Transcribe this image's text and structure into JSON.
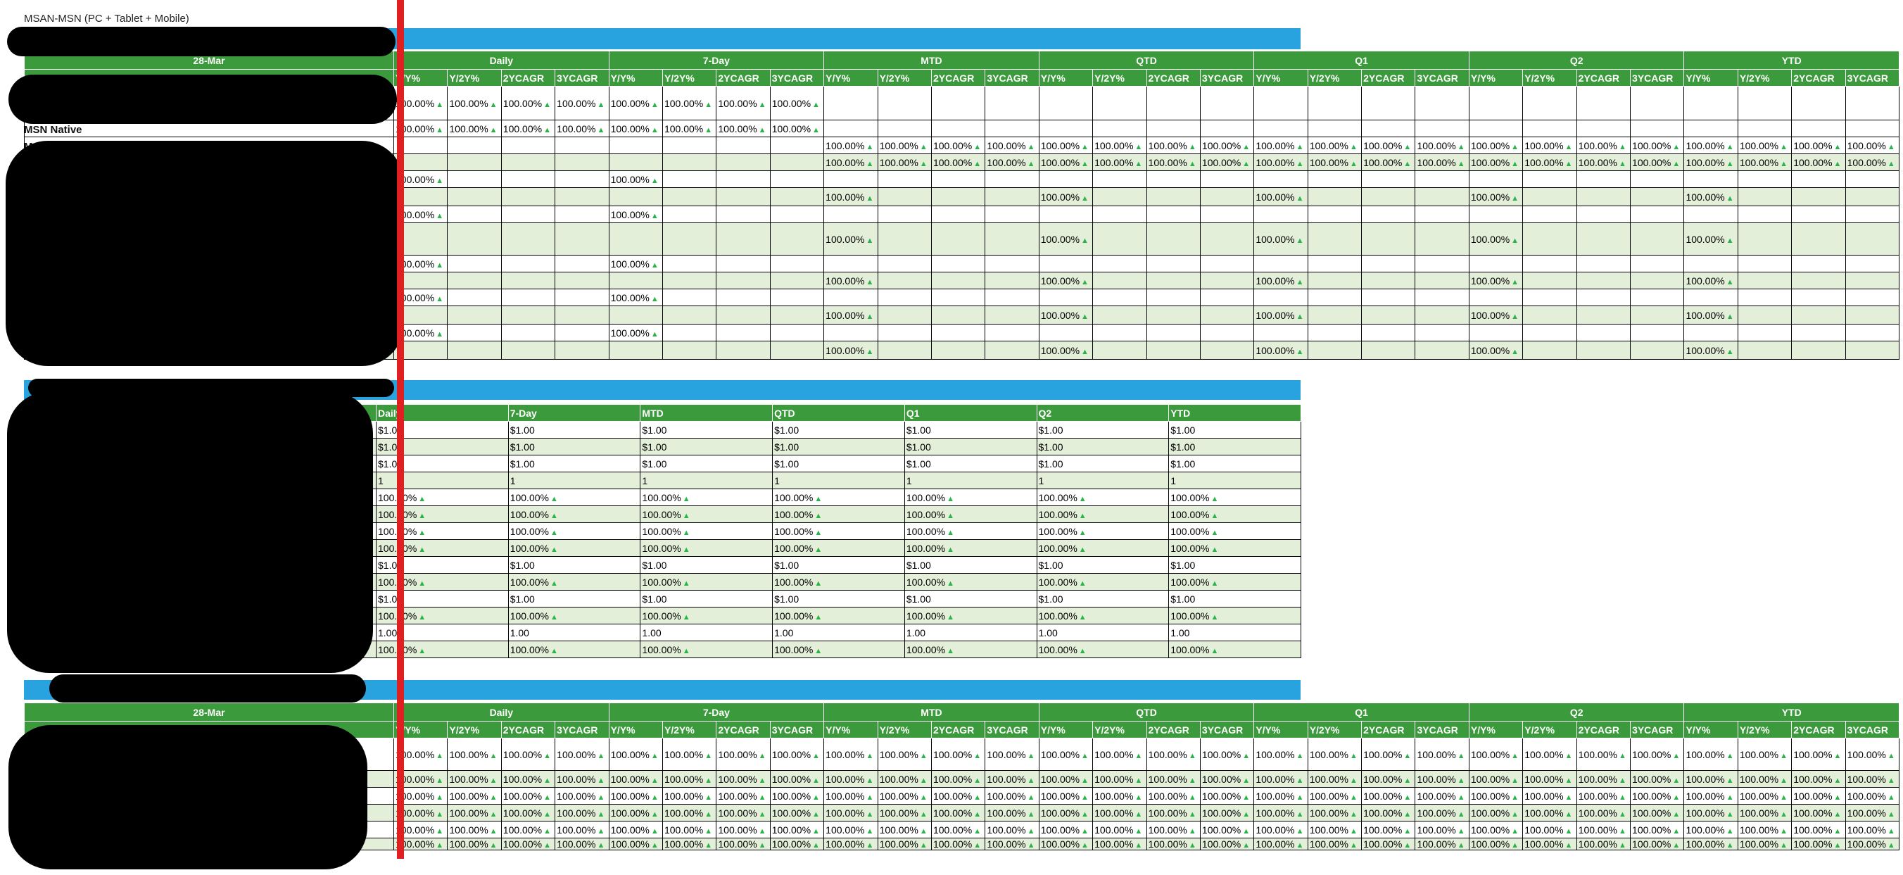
{
  "caption": "MSAN-MSN (PC + Tablet + Mobile)",
  "date_label": "28-Mar",
  "row_label_fragment_1": "MSN Native",
  "row_label_fragment_2": "M",
  "periods": [
    "Daily",
    "7-Day",
    "MTD",
    "QTD",
    "Q1",
    "Q2",
    "YTD"
  ],
  "metrics": [
    "Y/Y%",
    "Y/2Y%",
    "2YCAGR",
    "3YCAGR"
  ],
  "pct": "100.00%",
  "dollar": "$1.00",
  "one": "1",
  "one_dec": "1.00",
  "table2_header_labels": [
    "Daily",
    "7-Day",
    "MTD",
    "QTD",
    "Q1",
    "Q2",
    "YTD"
  ],
  "colors": {
    "green": "#3b9a3b",
    "blue": "#29a3e0",
    "zebra": "#e3efd9",
    "arrow": "#2cb24a",
    "redline": "#e02020"
  }
}
